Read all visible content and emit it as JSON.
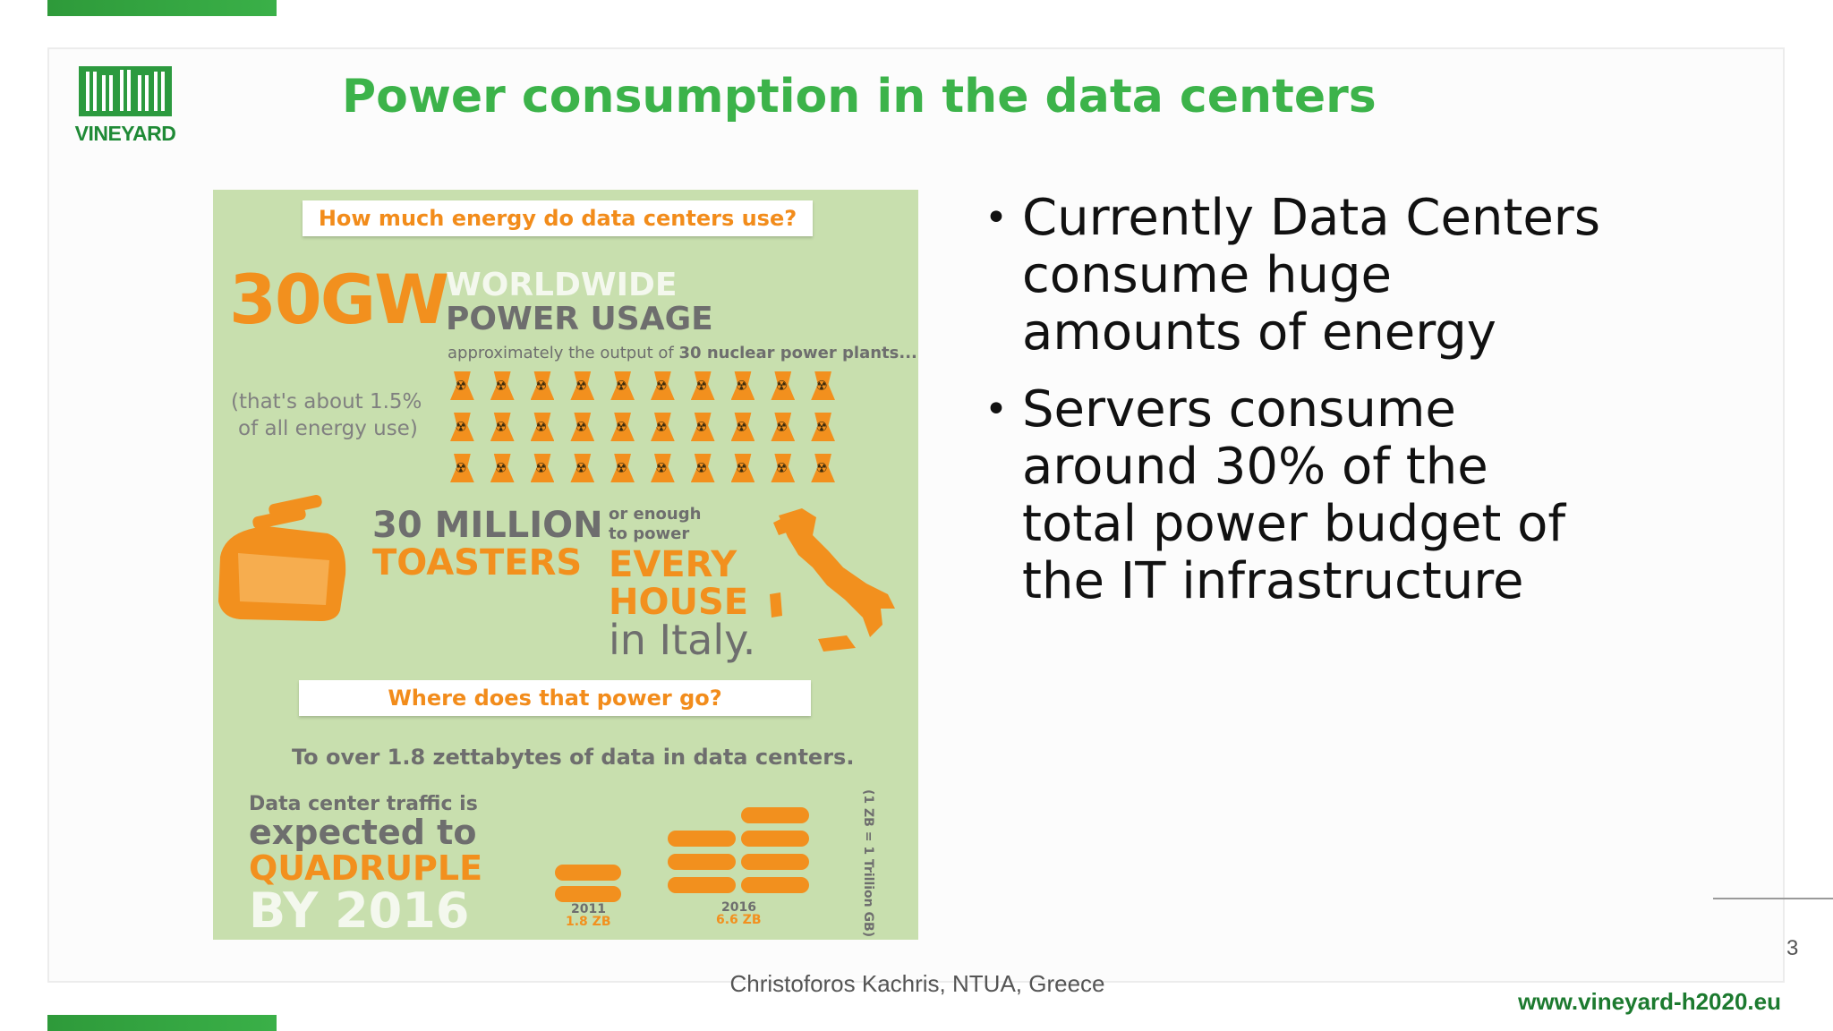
{
  "logo": {
    "text": "VINEYARD"
  },
  "slide": {
    "title": "Power consumption in the data centers",
    "bullets": [
      "Currently Data Centers consume huge amounts of energy",
      "Servers consume around 30% of the total power budget of the IT infrastructure"
    ],
    "page_number": "3",
    "footer": "Christoforos Kachris, NTUA, Greece",
    "url": "www.vineyard-h2020.eu"
  },
  "infographic": {
    "q1": "How much energy do data centers use?",
    "big_value": "30GW",
    "worldwide": "WORLDWIDE",
    "power_usage": "POWER USAGE",
    "approx": "approximately the output of",
    "approx_bold": "30 nuclear power plants...",
    "share_1": "(that's about 1.5%",
    "share_2": "of all energy use)",
    "toasters_1": "30 MILLION",
    "toasters_2": "TOASTERS",
    "or_enough_1": "or enough",
    "or_enough_2": "to power",
    "every": "EVERY",
    "house": "HOUSE",
    "italy": "in Italy.",
    "q2": "Where does that power go?",
    "zettabytes": "To over 1.8 zettabytes of data in data centers.",
    "traffic_1": "Data center traffic is",
    "traffic_2": "expected to",
    "traffic_3": "QUADRUPLE",
    "traffic_4": "BY 2016",
    "year_2011": "2011",
    "zb_2011": "1.8 ZB",
    "year_2016": "2016",
    "zb_2016": "6.6 ZB",
    "zb_note": "(1 ZB = 1 Trillion GB)"
  },
  "colors": {
    "accent": "#3cb34a",
    "brand_dark": "#1c7a2f",
    "orange": "#f2901e"
  }
}
